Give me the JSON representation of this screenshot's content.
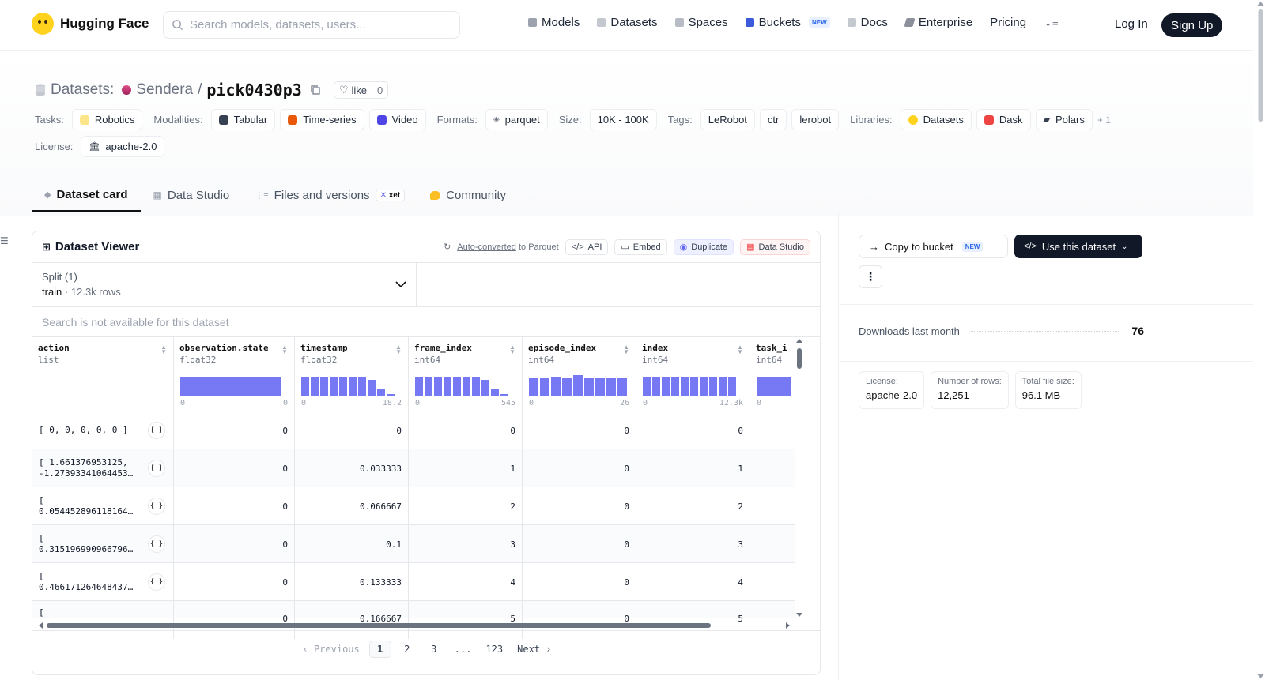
{
  "header": {
    "brand": "Hugging Face",
    "search_placeholder": "Search models, datasets, users...",
    "nav": [
      {
        "label": "Models",
        "color": "#9ca3af"
      },
      {
        "label": "Datasets",
        "color": "#9ca3af"
      },
      {
        "label": "Spaces",
        "color": "#9ca3af"
      },
      {
        "label": "Buckets",
        "color": "#3b5bdb",
        "badge": "NEW"
      },
      {
        "label": "Docs",
        "color": "#9ca3af"
      },
      {
        "label": "Enterprise",
        "color": "#6b7280"
      },
      {
        "label": "Pricing"
      }
    ],
    "login": "Log In",
    "signup": "Sign Up"
  },
  "dataset": {
    "prefix": "Datasets:",
    "owner": "Sendera",
    "separator": "/",
    "name": "pick0430p3",
    "like_label": "like",
    "like_count": "0"
  },
  "meta": {
    "tasks_label": "Tasks:",
    "tasks": [
      "Robotics"
    ],
    "modalities_label": "Modalities:",
    "modalities": [
      "Tabular",
      "Time-series",
      "Video"
    ],
    "formats_label": "Formats:",
    "formats": [
      "parquet"
    ],
    "size_label": "Size:",
    "size": "10K - 100K",
    "tags_label": "Tags:",
    "tags": [
      "LeRobot",
      "ctr",
      "lerobot"
    ],
    "libraries_label": "Libraries:",
    "libraries": [
      "Datasets",
      "Dask",
      "Polars"
    ],
    "libraries_more": "+ 1",
    "license_label": "License:",
    "license": "apache-2.0"
  },
  "tabs": [
    {
      "label": "Dataset card",
      "active": true
    },
    {
      "label": "Data Studio"
    },
    {
      "label": "Files and versions",
      "badge": "xet"
    },
    {
      "label": "Community"
    }
  ],
  "viewer": {
    "title": "Dataset Viewer",
    "auto_converted": "Auto-converted",
    "to_parquet": "to Parquet",
    "api": "API",
    "embed": "Embed",
    "duplicate": "Duplicate",
    "data_studio": "Data Studio",
    "split_label": "Split (1)",
    "split_value": "train",
    "split_rows": "12.3k rows",
    "search_note": "Search is not available for this dataset",
    "columns": [
      {
        "name": "action",
        "type": "list"
      },
      {
        "name": "observation.state",
        "type": "float32",
        "min": "0",
        "max": "0"
      },
      {
        "name": "timestamp",
        "type": "float32",
        "min": "0",
        "max": "18.2"
      },
      {
        "name": "frame_index",
        "type": "int64",
        "min": "0",
        "max": "545"
      },
      {
        "name": "episode_index",
        "type": "int64",
        "min": "0",
        "max": "26"
      },
      {
        "name": "index",
        "type": "int64",
        "min": "0",
        "max": "12.3k"
      },
      {
        "name": "task_i",
        "type": "int64",
        "min": "0",
        "max": ""
      }
    ],
    "rows": [
      {
        "action": [
          "[ 0, 0, 0, 0, 0 ]"
        ],
        "obs": "0",
        "ts": "0",
        "fi": "0",
        "ei": "0",
        "idx": "0"
      },
      {
        "action": [
          "[ 1.661376953125,",
          "-1.27393341064453…"
        ],
        "obs": "0",
        "ts": "0.033333",
        "fi": "1",
        "ei": "0",
        "idx": "1"
      },
      {
        "action": [
          "[",
          "0.054452896118164…"
        ],
        "obs": "0",
        "ts": "0.066667",
        "fi": "2",
        "ei": "0",
        "idx": "2"
      },
      {
        "action": [
          "[",
          "0.315196990966796…"
        ],
        "obs": "0",
        "ts": "0.1",
        "fi": "3",
        "ei": "0",
        "idx": "3"
      },
      {
        "action": [
          "[",
          "0.466171264648437…"
        ],
        "obs": "0",
        "ts": "0.133333",
        "fi": "4",
        "ei": "0",
        "idx": "4"
      },
      {
        "action": [
          "["
        ],
        "obs": "0",
        "ts": "0.166667",
        "fi": "5",
        "ei": "0",
        "idx": "5"
      }
    ],
    "json_label": "{ }",
    "pager": {
      "previous": "Previous",
      "pages": [
        "1",
        "2",
        "3",
        "...",
        "123"
      ],
      "next": "Next",
      "current": "1"
    }
  },
  "sidebar": {
    "copy_bucket": "Copy to bucket",
    "copy_badge": "NEW",
    "use_dataset": "Use this dataset",
    "downloads_label": "Downloads last month",
    "downloads": "76",
    "stats": [
      {
        "label": "License:",
        "value": "apache-2.0"
      },
      {
        "label": "Number of rows:",
        "value": "12,251"
      },
      {
        "label": "Total file size:",
        "value": "96.1 MB"
      }
    ]
  },
  "colors": {
    "accent": "#6366f1",
    "dark": "#111827"
  }
}
